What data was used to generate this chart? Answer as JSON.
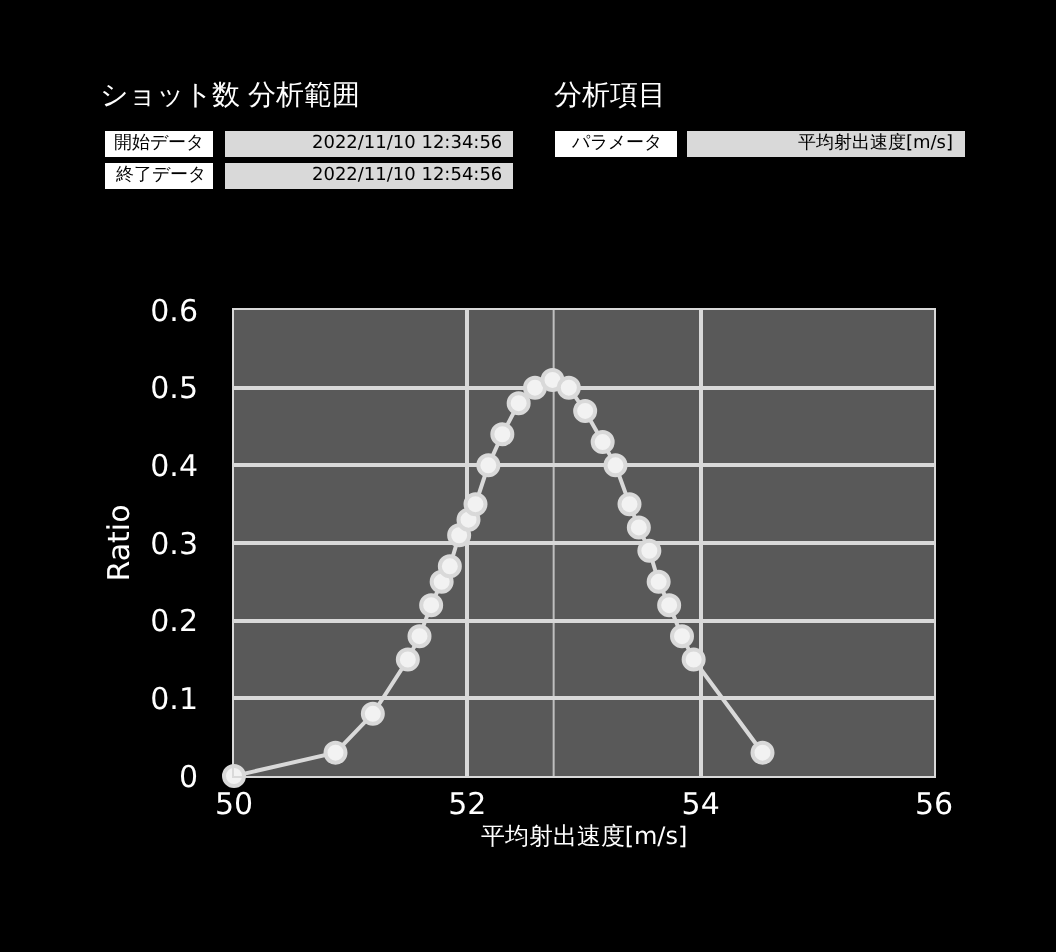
{
  "chart_data": {
    "type": "line",
    "xlabel": "平均射出速度[m/s]",
    "ylabel": "Ratio",
    "annotations": [
      "ショット数",
      "分析範囲",
      "分析項目",
      "開始データ",
      "2022/11/10 12:34:56",
      "終了データ",
      "2022/11/10 12:54:56",
      "パラメータ",
      "平均射出速度[m/s]"
    ],
    "series": [
      {
        "color": "#d9d9d9",
        "x": [
          50.0,
          50.87,
          51.19,
          51.49,
          51.59,
          51.69,
          51.78,
          51.85,
          51.93,
          52.01,
          52.07,
          52.18,
          52.3,
          52.44,
          52.58,
          52.73,
          52.87,
          53.01,
          53.16,
          53.27,
          53.39,
          53.47,
          53.56,
          53.64,
          53.73,
          53.84,
          53.94,
          54.53
        ],
        "values": [
          0.0,
          0.03,
          0.08,
          0.15,
          0.18,
          0.22,
          0.25,
          0.27,
          0.31,
          0.33,
          0.35,
          0.4,
          0.44,
          0.48,
          0.5,
          0.51,
          0.5,
          0.47,
          0.43,
          0.4,
          0.35,
          0.32,
          0.29,
          0.25,
          0.22,
          0.18,
          0.15,
          0.03
        ]
      }
    ],
    "xlim": [
      50,
      56
    ],
    "xticks": [
      50,
      52,
      54,
      56
    ],
    "ylim": [
      0,
      0.6
    ],
    "yticks": [
      0,
      0.1,
      0.2,
      0.3,
      0.4,
      0.5,
      0.6
    ],
    "ref_lines": [
      {
        "axis": "x",
        "value": 52.74,
        "color": "#bfbfbf"
      }
    ],
    "grid": true,
    "marker": "circle",
    "line_style": "solid"
  }
}
